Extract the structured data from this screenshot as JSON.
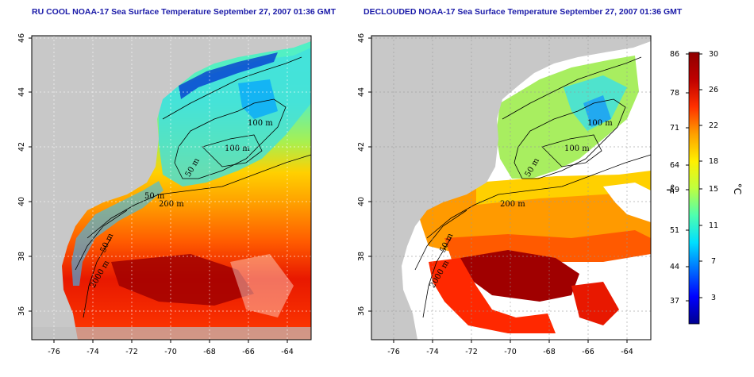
{
  "titles": {
    "left": "RU COOL NOAA-17 Sea Surface Temperature September 27, 2007 01:36 GMT",
    "right": "DECLOUDED NOAA-17 Sea Surface Temperature September 27, 2007 01:36 GMT"
  },
  "map_axes": {
    "lon_ticks": [
      "-76",
      "-74",
      "-72",
      "-70",
      "-68",
      "-66",
      "-64"
    ],
    "lat_ticks": [
      "46",
      "44",
      "42",
      "40",
      "38",
      "36"
    ]
  },
  "contours": {
    "left": [
      "100 m",
      "100 m",
      "50 m",
      "50 m",
      "200 m",
      "50 m",
      "2000 m"
    ],
    "right": [
      "100 m",
      "100 m",
      "50 m",
      "200 m",
      "50 m",
      "2000 m"
    ]
  },
  "colorbar": {
    "fahrenheit_ticks": [
      "86",
      "78",
      "71",
      "64",
      "59",
      "51",
      "44",
      "37"
    ],
    "celsius_ticks": [
      "30",
      "26",
      "22",
      "18",
      "15",
      "11",
      "7",
      "3"
    ],
    "fahrenheit_label": "°F",
    "celsius_label": "°C",
    "colors": [
      "#00008f",
      "#0000ff",
      "#006fff",
      "#00dfff",
      "#4fffaf",
      "#bfff3f",
      "#ffef00",
      "#ff9f00",
      "#ff3000",
      "#bf0000",
      "#8f0000"
    ]
  }
}
